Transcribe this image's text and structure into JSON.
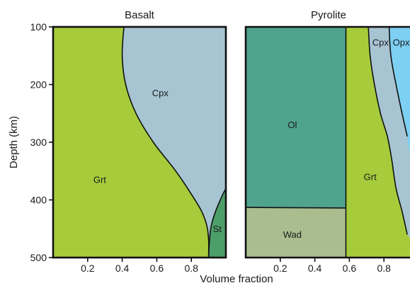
{
  "figure": {
    "ylabel": "Depth (km)",
    "xlabel": "Volume fraction"
  },
  "colors": {
    "grt": "#a6cc3c",
    "cpx": "#a7c4d3",
    "st": "#4d9f6a",
    "ol": "#4fa38f",
    "wad": "#a9bd8f",
    "opx": "#7dd0f2",
    "outline": "#111111"
  },
  "chart_data": [
    {
      "type": "area",
      "title": "Basalt",
      "xlabel": "Volume fraction",
      "ylabel": "Depth (km)",
      "xlim": [
        0,
        1
      ],
      "ylim": [
        500,
        100
      ],
      "y_ticks": [
        100,
        200,
        300,
        400,
        500
      ],
      "x_ticks": [
        0.2,
        0.4,
        0.6,
        0.8
      ],
      "boundaries": [
        {
          "between": [
            "Grt",
            "Cpx"
          ],
          "points": [
            [
              0.41,
              100
            ],
            [
              0.4,
              150
            ],
            [
              0.42,
              200
            ],
            [
              0.48,
              250
            ],
            [
              0.58,
              300
            ],
            [
              0.71,
              350
            ],
            [
              0.8,
              390
            ],
            [
              0.86,
              420
            ],
            [
              0.89,
              445
            ],
            [
              0.9,
              470
            ],
            [
              0.9,
              500
            ]
          ]
        },
        {
          "between": [
            "Cpx",
            "St"
          ],
          "points": [
            [
              1.0,
              380
            ],
            [
              0.975,
              395
            ],
            [
              0.94,
              420
            ],
            [
              0.915,
              445
            ],
            [
              0.905,
              470
            ],
            [
              0.9,
              500
            ]
          ]
        }
      ],
      "phases": [
        {
          "label": "Grt",
          "x": 0.27,
          "depth": 365
        },
        {
          "label": "Cpx",
          "x": 0.62,
          "depth": 215
        },
        {
          "label": "St",
          "x": 0.95,
          "depth": 450
        }
      ]
    },
    {
      "type": "area",
      "title": "Pyrolite",
      "xlabel": "Volume fraction",
      "ylim": [
        500,
        100
      ],
      "x_ticks": [
        0.2,
        0.4,
        0.6,
        0.8
      ],
      "boundaries": [
        {
          "between": [
            "Ol",
            "Wad"
          ],
          "points": [
            [
              0.0,
              413
            ],
            [
              0.58,
              414
            ]
          ]
        },
        {
          "between": [
            "Ol/Wad",
            "Grt"
          ],
          "points": [
            [
              0.58,
              100
            ],
            [
              0.58,
              500
            ]
          ]
        },
        {
          "between": [
            "Grt",
            "Cpx"
          ],
          "points": [
            [
              0.71,
              100
            ],
            [
              0.72,
              150
            ],
            [
              0.745,
              200
            ],
            [
              0.78,
              250
            ],
            [
              0.82,
              290
            ],
            [
              0.845,
              330
            ],
            [
              0.87,
              380
            ],
            [
              0.905,
              420
            ],
            [
              0.935,
              460
            ]
          ]
        },
        {
          "between": [
            "Cpx",
            "Opx"
          ],
          "points": [
            [
              0.83,
              100
            ],
            [
              0.84,
              150
            ],
            [
              0.87,
              200
            ],
            [
              0.905,
              250
            ],
            [
              0.935,
              290
            ]
          ]
        }
      ],
      "phases": [
        {
          "label": "Ol",
          "x": 0.27,
          "depth": 270
        },
        {
          "label": "Wad",
          "x": 0.27,
          "depth": 460
        },
        {
          "label": "Grt",
          "x": 0.72,
          "depth": 360
        },
        {
          "label": "Cpx",
          "x": 0.78,
          "depth": 127
        },
        {
          "label": "Opx",
          "x": 0.9,
          "depth": 127
        }
      ]
    }
  ]
}
